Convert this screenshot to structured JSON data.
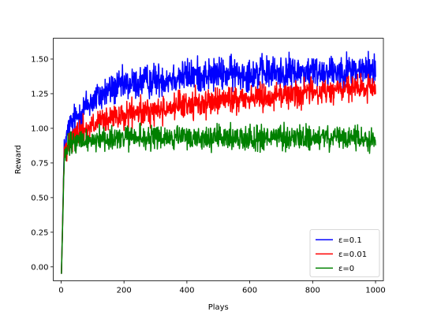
{
  "chart_data": {
    "type": "line",
    "title": "",
    "xlabel": "Plays",
    "ylabel": "Reward",
    "xlim": [
      -25,
      1025
    ],
    "ylim": [
      -0.1,
      1.65
    ],
    "xticks": [
      0,
      200,
      400,
      600,
      800,
      1000
    ],
    "yticks": [
      0.0,
      0.25,
      0.5,
      0.75,
      1.0,
      1.25,
      1.5
    ],
    "ytick_labels": [
      "0.00",
      "0.25",
      "0.50",
      "0.75",
      "1.00",
      "1.25",
      "1.50"
    ],
    "xtick_labels": [
      "0",
      "200",
      "400",
      "600",
      "800",
      "1000"
    ],
    "grid": false,
    "legend_position": "lower-right",
    "x_range": [
      1,
      1000
    ],
    "series": [
      {
        "name": "ε=0.1",
        "color": "#0000ff",
        "x": [
          1,
          10,
          25,
          50,
          75,
          100,
          150,
          200,
          250,
          300,
          400,
          500,
          600,
          700,
          800,
          900,
          1000
        ],
        "values": [
          -0.05,
          0.85,
          1.0,
          1.08,
          1.15,
          1.2,
          1.27,
          1.31,
          1.33,
          1.35,
          1.38,
          1.39,
          1.4,
          1.4,
          1.41,
          1.42,
          1.42
        ],
        "noise": 0.075
      },
      {
        "name": "ε=0.01",
        "color": "#ff0000",
        "x": [
          1,
          10,
          25,
          50,
          100,
          150,
          200,
          250,
          300,
          400,
          500,
          600,
          700,
          800,
          900,
          1000
        ],
        "values": [
          -0.05,
          0.82,
          0.93,
          0.97,
          1.02,
          1.06,
          1.09,
          1.11,
          1.13,
          1.17,
          1.2,
          1.22,
          1.24,
          1.26,
          1.28,
          1.29
        ],
        "noise": 0.06
      },
      {
        "name": "ε=0",
        "color": "#008000",
        "x": [
          1,
          10,
          25,
          50,
          100,
          200,
          300,
          400,
          500,
          600,
          700,
          800,
          900,
          1000
        ],
        "values": [
          -0.05,
          0.78,
          0.88,
          0.9,
          0.92,
          0.93,
          0.93,
          0.93,
          0.93,
          0.93,
          0.93,
          0.93,
          0.93,
          0.92
        ],
        "noise": 0.055
      }
    ]
  }
}
